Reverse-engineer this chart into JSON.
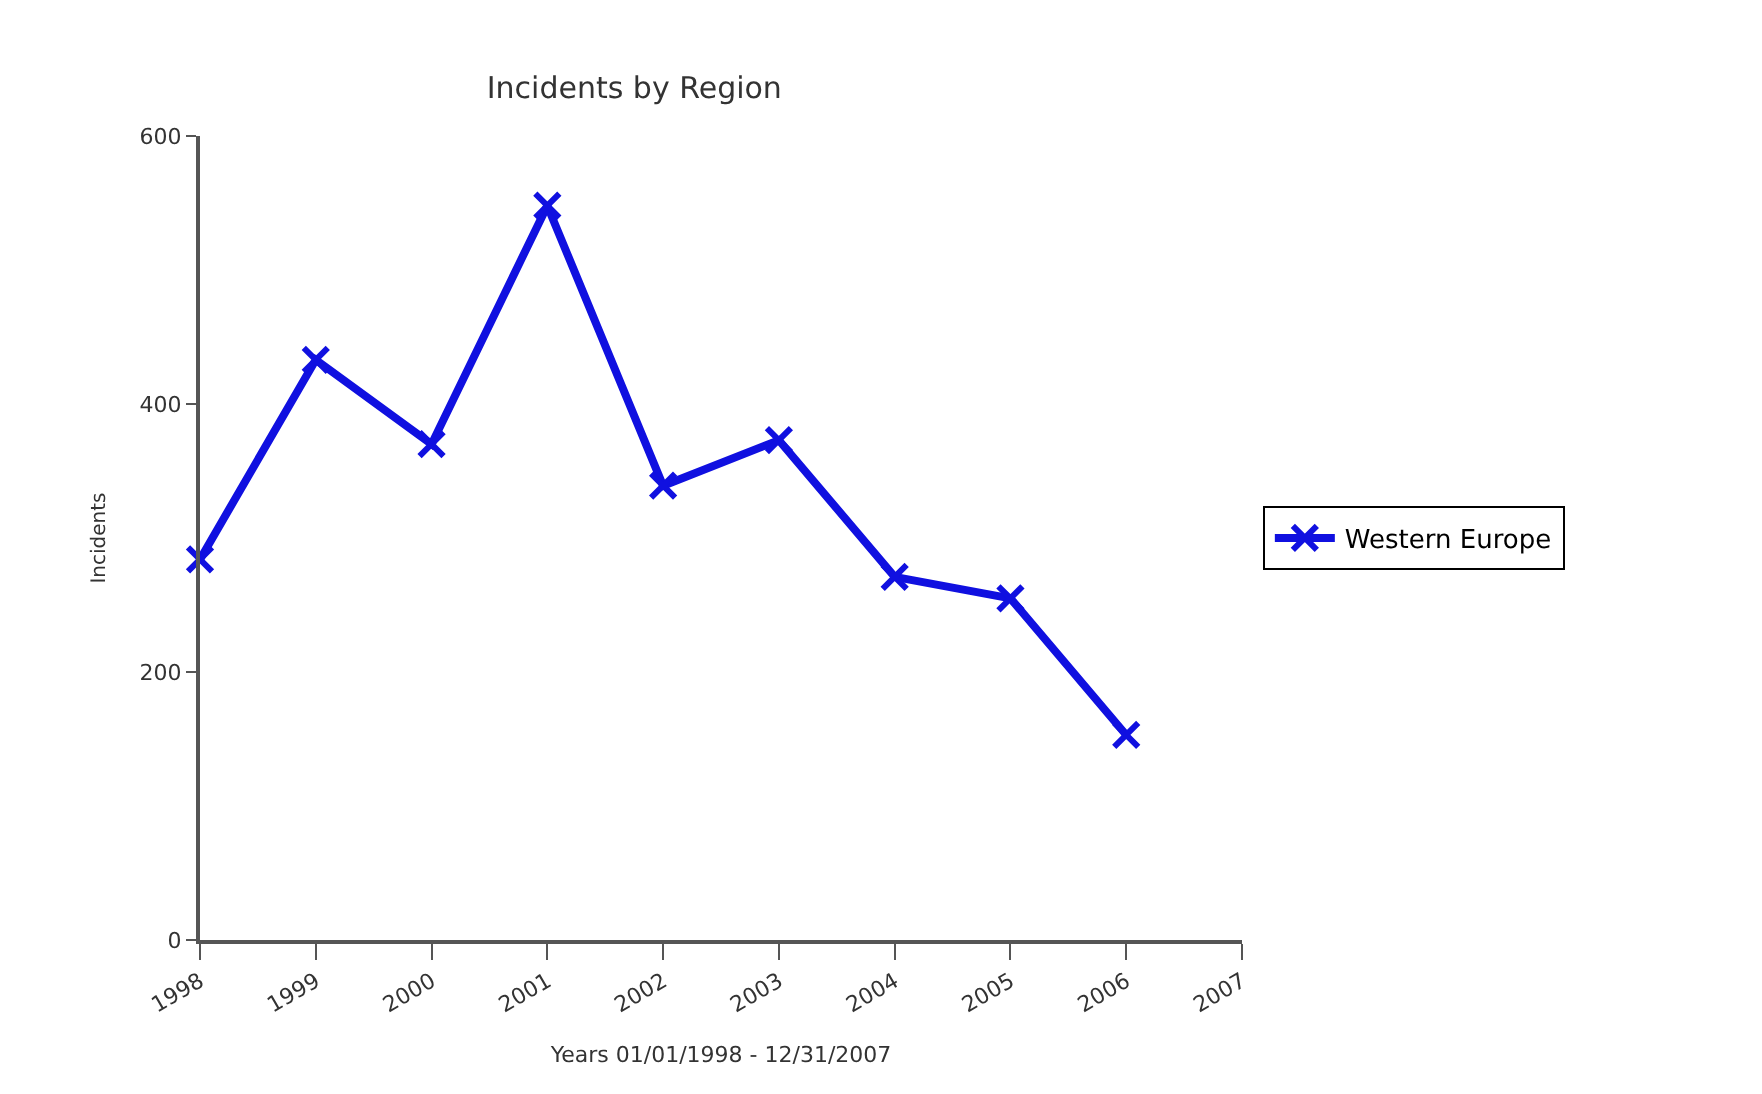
{
  "chart_data": {
    "type": "line",
    "title": "Incidents by Region",
    "xlabel": "Years 01/01/1998 - 12/31/2007",
    "ylabel": "Incidents",
    "categories": [
      "1998",
      "1999",
      "2000",
      "2001",
      "2002",
      "2003",
      "2004",
      "2005",
      "2006",
      "2007"
    ],
    "series": [
      {
        "name": "Western Europe",
        "color": "#1010e0",
        "values": [
          284,
          433,
          370,
          548,
          339,
          373,
          271,
          255,
          153,
          null
        ]
      }
    ],
    "ylim": [
      0,
      600
    ],
    "yticks": [
      0,
      200,
      400,
      600
    ],
    "legend": "right",
    "marker": "cross",
    "line_style": "solid"
  }
}
